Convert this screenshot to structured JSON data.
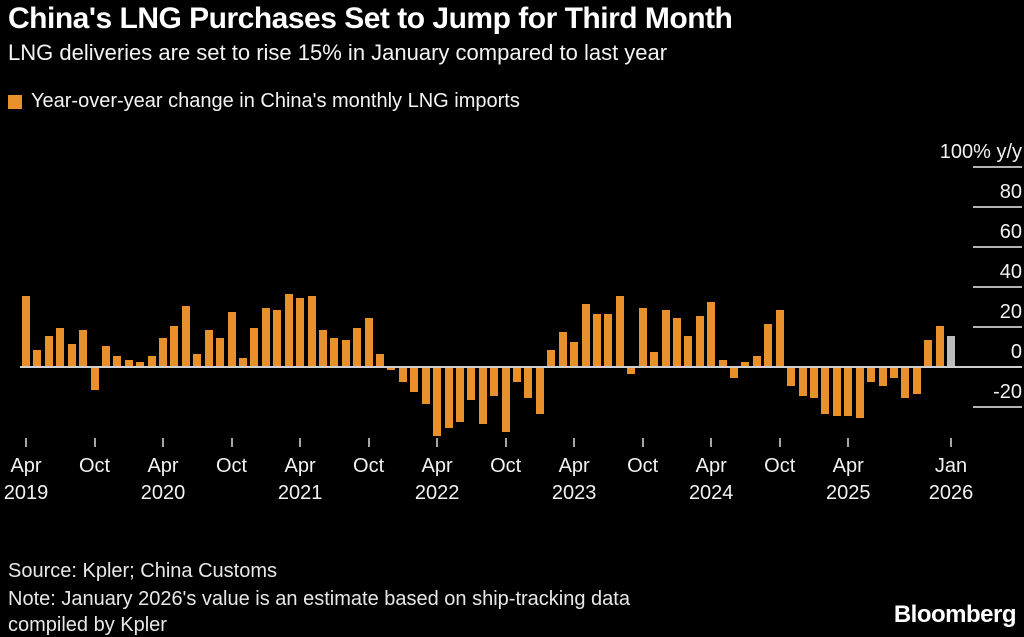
{
  "header": {
    "title": "China's LNG Purchases Set to Jump for Third Month",
    "subtitle": "LNG deliveries are set to rise 15% in January compared to last year",
    "legend_label": "Year-over-year change in China's monthly LNG imports"
  },
  "colors": {
    "background": "#000000",
    "bar": "#E8912C",
    "estimate_bar": "#BDBDBD",
    "zero_line": "#CFCFCF",
    "tick_line": "#B3B3B3",
    "axis_text": "#F2F2F2"
  },
  "y_axis": {
    "ticks": [
      {
        "v": 100,
        "label": "100% y/y"
      },
      {
        "v": 80,
        "label": "80"
      },
      {
        "v": 60,
        "label": "60"
      },
      {
        "v": 40,
        "label": "40"
      },
      {
        "v": 20,
        "label": "20"
      },
      {
        "v": 0,
        "label": "0"
      },
      {
        "v": -20,
        "label": "-20"
      }
    ]
  },
  "x_axis": {
    "ticks": [
      {
        "i": 0,
        "m": "Apr",
        "y": "2019"
      },
      {
        "i": 6,
        "m": "Oct"
      },
      {
        "i": 12,
        "m": "Apr",
        "y": "2020"
      },
      {
        "i": 18,
        "m": "Oct"
      },
      {
        "i": 24,
        "m": "Apr",
        "y": "2021"
      },
      {
        "i": 30,
        "m": "Oct"
      },
      {
        "i": 36,
        "m": "Apr",
        "y": "2022"
      },
      {
        "i": 42,
        "m": "Oct"
      },
      {
        "i": 48,
        "m": "Apr",
        "y": "2023"
      },
      {
        "i": 54,
        "m": "Oct"
      },
      {
        "i": 60,
        "m": "Apr",
        "y": "2024"
      },
      {
        "i": 66,
        "m": "Oct"
      },
      {
        "i": 72,
        "m": "Apr",
        "y": "2025"
      },
      {
        "i": 81,
        "m": "Jan",
        "y": "2026"
      }
    ]
  },
  "footer": {
    "source": "Source: Kpler; China Customs",
    "note": "Note: January 2026's value is an estimate based on ship-tracking data compiled by Kpler",
    "logo": "Bloomberg"
  },
  "chart_data": {
    "type": "bar",
    "title": "Year-over-year change in China's monthly LNG imports",
    "ylabel": "% y/y",
    "ylim": [
      -40,
      100
    ],
    "grid": "right-edge ticks only, zero baseline",
    "legend_position": "top-left",
    "categories": [
      "Apr 2019",
      "May 2019",
      "Jun 2019",
      "Jul 2019",
      "Aug 2019",
      "Sep 2019",
      "Oct 2019",
      "Nov 2019",
      "Dec 2019",
      "Jan 2020",
      "Feb 2020",
      "Mar 2020",
      "Apr 2020",
      "May 2020",
      "Jun 2020",
      "Jul 2020",
      "Aug 2020",
      "Sep 2020",
      "Oct 2020",
      "Nov 2020",
      "Dec 2020",
      "Jan 2021",
      "Feb 2021",
      "Mar 2021",
      "Apr 2021",
      "May 2021",
      "Jun 2021",
      "Jul 2021",
      "Aug 2021",
      "Sep 2021",
      "Oct 2021",
      "Nov 2021",
      "Dec 2021",
      "Jan 2022",
      "Feb 2022",
      "Mar 2022",
      "Apr 2022",
      "May 2022",
      "Jun 2022",
      "Jul 2022",
      "Aug 2022",
      "Sep 2022",
      "Oct 2022",
      "Nov 2022",
      "Dec 2022",
      "Jan 2023",
      "Feb 2023",
      "Mar 2023",
      "Apr 2023",
      "May 2023",
      "Jun 2023",
      "Jul 2023",
      "Aug 2023",
      "Sep 2023",
      "Oct 2023",
      "Nov 2023",
      "Dec 2023",
      "Jan 2024",
      "Feb 2024",
      "Mar 2024",
      "Apr 2024",
      "May 2024",
      "Jun 2024",
      "Jul 2024",
      "Aug 2024",
      "Sep 2024",
      "Oct 2024",
      "Nov 2024",
      "Dec 2024",
      "Jan 2025",
      "Feb 2025",
      "Mar 2025",
      "Apr 2025",
      "May 2025",
      "Jun 2025",
      "Jul 2025",
      "Aug 2025",
      "Sep 2025",
      "Oct 2025",
      "Nov 2025",
      "Dec 2025",
      "Jan 2026"
    ],
    "values": [
      35,
      8,
      15,
      19,
      11,
      18,
      -11,
      10,
      5,
      3,
      2,
      5,
      14,
      20,
      30,
      6,
      18,
      14,
      27,
      4,
      19,
      29,
      28,
      36,
      34,
      35,
      18,
      14,
      13,
      19,
      24,
      6,
      -1,
      -7,
      -12,
      -18,
      -34,
      -30,
      -27,
      -16,
      -28,
      -14,
      -32,
      -7,
      -15,
      -23,
      8,
      17,
      12,
      31,
      26,
      26,
      35,
      -3,
      29,
      7,
      28,
      24,
      15,
      25,
      32,
      3,
      -5,
      2,
      5,
      21,
      28,
      -9,
      -14,
      -15,
      -23,
      -24,
      -24,
      -25,
      -7,
      -9,
      -5,
      -15,
      -13,
      13,
      20,
      15
    ],
    "estimate_last": true,
    "estimate_note": "Jan 2026 bar shown in gray (estimate)"
  }
}
